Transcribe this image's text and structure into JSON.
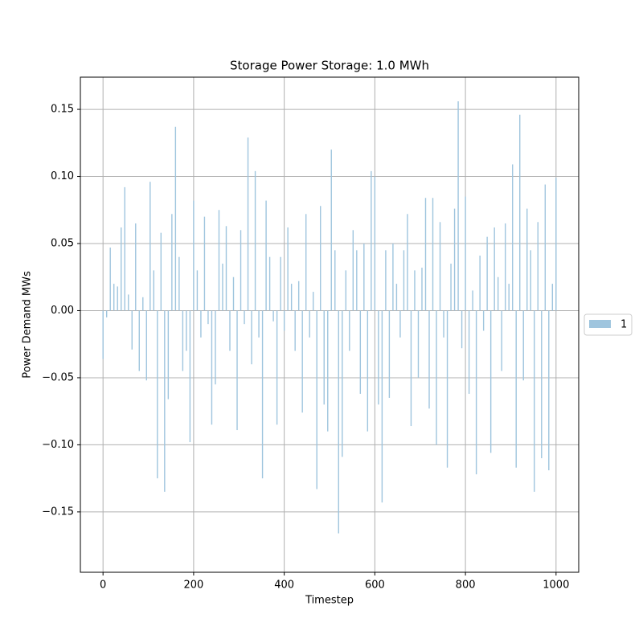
{
  "chart_data": {
    "type": "bar",
    "title": "Storage Power Storage: 1.0 MWh",
    "x_label": "Timestep",
    "y_label": "Power Demand MWs",
    "x": [
      0,
      8,
      16,
      24,
      32,
      40,
      48,
      56,
      64,
      72,
      80,
      88,
      96,
      104,
      112,
      120,
      128,
      136,
      144,
      152,
      160,
      168,
      176,
      184,
      192,
      200,
      208,
      216,
      224,
      232,
      240,
      248,
      256,
      264,
      272,
      280,
      288,
      296,
      304,
      312,
      320,
      328,
      336,
      344,
      352,
      360,
      368,
      376,
      384,
      392,
      400,
      408,
      416,
      424,
      432,
      440,
      448,
      456,
      464,
      472,
      480,
      488,
      496,
      504,
      512,
      520,
      528,
      536,
      544,
      552,
      560,
      568,
      576,
      584,
      592,
      600,
      608,
      616,
      624,
      632,
      640,
      648,
      656,
      664,
      672,
      680,
      688,
      696,
      704,
      712,
      720,
      728,
      736,
      744,
      752,
      760,
      768,
      776,
      784,
      792,
      800,
      808,
      816,
      824,
      832,
      840,
      848,
      856,
      864,
      872,
      880,
      888,
      896,
      904,
      912,
      920,
      928,
      936,
      944,
      952,
      960,
      968,
      976,
      984,
      992,
      1000
    ],
    "series": [
      {
        "name": "1",
        "color": "#9fc5de",
        "values": [
          -0.036,
          -0.005,
          0.047,
          0.02,
          0.018,
          0.062,
          0.092,
          0.012,
          -0.029,
          0.065,
          -0.045,
          0.01,
          -0.052,
          0.096,
          0.03,
          -0.125,
          0.058,
          -0.135,
          -0.066,
          0.072,
          0.137,
          0.04,
          -0.045,
          -0.03,
          -0.098,
          0.082,
          0.03,
          -0.02,
          0.07,
          -0.01,
          -0.085,
          -0.055,
          0.075,
          0.035,
          0.063,
          -0.03,
          0.025,
          -0.089,
          0.06,
          -0.01,
          0.129,
          -0.04,
          0.104,
          -0.02,
          -0.125,
          0.082,
          0.04,
          -0.008,
          -0.085,
          0.04,
          -0.015,
          0.062,
          0.02,
          -0.03,
          0.022,
          -0.076,
          0.072,
          -0.02,
          0.014,
          -0.133,
          0.078,
          -0.07,
          -0.09,
          0.12,
          0.045,
          -0.166,
          -0.109,
          0.03,
          -0.03,
          0.06,
          0.045,
          -0.062,
          0.05,
          -0.09,
          0.104,
          0.1,
          -0.07,
          -0.143,
          0.045,
          -0.065,
          0.05,
          0.02,
          -0.02,
          0.045,
          0.072,
          -0.086,
          0.03,
          -0.05,
          0.032,
          0.084,
          -0.073,
          0.084,
          -0.1,
          0.066,
          -0.02,
          -0.117,
          0.035,
          0.076,
          0.156,
          -0.028,
          0.085,
          -0.062,
          0.015,
          -0.122,
          0.041,
          -0.015,
          0.055,
          -0.106,
          0.062,
          0.025,
          -0.045,
          0.065,
          0.02,
          0.109,
          -0.117,
          0.146,
          -0.052,
          0.076,
          0.045,
          -0.135,
          0.066,
          -0.11,
          0.094,
          -0.119,
          0.02,
          0.099
        ]
      }
    ],
    "xlim": [
      -50,
      1050
    ],
    "xticks": [
      0,
      200,
      400,
      600,
      800,
      1000
    ],
    "ylim": [
      -0.195,
      0.174
    ],
    "yticks": [
      {
        "value": -0.15,
        "label": "−0.15"
      },
      {
        "value": -0.1,
        "label": "−0.10"
      },
      {
        "value": -0.05,
        "label": "−0.05"
      },
      {
        "value": 0,
        "label": "0.00"
      },
      0.05,
      {
        "value": 0.1,
        "label": "0.10"
      },
      0.15
    ],
    "grid": true,
    "legend": "right"
  }
}
